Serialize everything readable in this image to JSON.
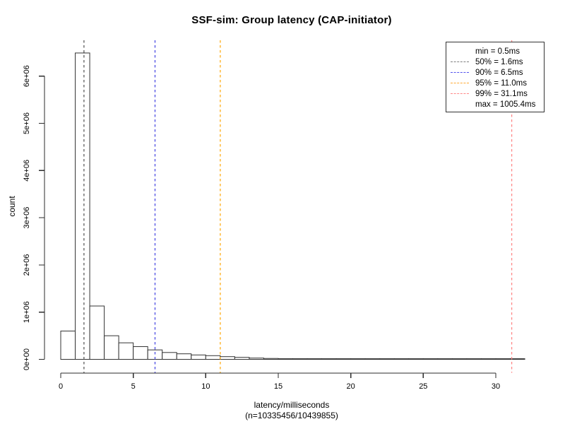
{
  "title": "SSF-sim: Group latency (CAP-initiator)",
  "chart_data": {
    "type": "bar",
    "subtype": "histogram",
    "title": "SSF-sim: Group latency (CAP-initiator)",
    "xlabel": "latency/milliseconds",
    "xlabel2": "(n=10335456/10439855)",
    "ylabel": "count",
    "grid": false,
    "x_ticks": [
      0,
      5,
      10,
      15,
      20,
      25,
      30
    ],
    "x_axis_range": [
      0,
      30
    ],
    "xlim": [
      0,
      32
    ],
    "ylim": [
      0,
      6750000
    ],
    "y_ticks": [
      {
        "label": "0e+00",
        "value": 0
      },
      {
        "label": "1e+06",
        "value": 1000000
      },
      {
        "label": "2e+06",
        "value": 2000000
      },
      {
        "label": "3e+06",
        "value": 3000000
      },
      {
        "label": "4e+06",
        "value": 4000000
      },
      {
        "label": "5e+06",
        "value": 5000000
      },
      {
        "label": "6e+06",
        "value": 6000000
      }
    ],
    "bin_start_ms": 0,
    "bin_width_ms": 1,
    "counts": [
      600000,
      6490000,
      1130000,
      500000,
      350000,
      270000,
      200000,
      145000,
      117000,
      93000,
      78000,
      57000,
      42000,
      27000,
      19000,
      13000,
      10000,
      9000,
      8000,
      7000,
      6000,
      6000,
      5000,
      5000,
      4000,
      4000,
      4000,
      3000,
      3000,
      3000,
      3000,
      3000
    ],
    "bar_fill": "#ffffff",
    "bar_border": "#333333",
    "axis_color": "#2b2b2b",
    "percentile_lines": [
      {
        "name": "p50",
        "value_ms": 1.6,
        "color": "#4d4d4d"
      },
      {
        "name": "p90",
        "value_ms": 6.5,
        "color": "#4040e0"
      },
      {
        "name": "p95",
        "value_ms": 11.0,
        "color": "#ffa500"
      },
      {
        "name": "p99",
        "value_ms": 31.1,
        "color": "#ff8080"
      }
    ],
    "legend": {
      "position": "top-right",
      "items": [
        {
          "label": "min = 0.5ms",
          "color": null
        },
        {
          "label": "50% = 1.6ms",
          "color": "#808080"
        },
        {
          "label": "90% = 6.5ms",
          "color": "#5555ee"
        },
        {
          "label": "95% = 11.0ms",
          "color": "#ffaa33"
        },
        {
          "label": "99% = 31.1ms",
          "color": "#ff8888"
        },
        {
          "label": "max = 1005.4ms",
          "color": null
        }
      ]
    }
  }
}
